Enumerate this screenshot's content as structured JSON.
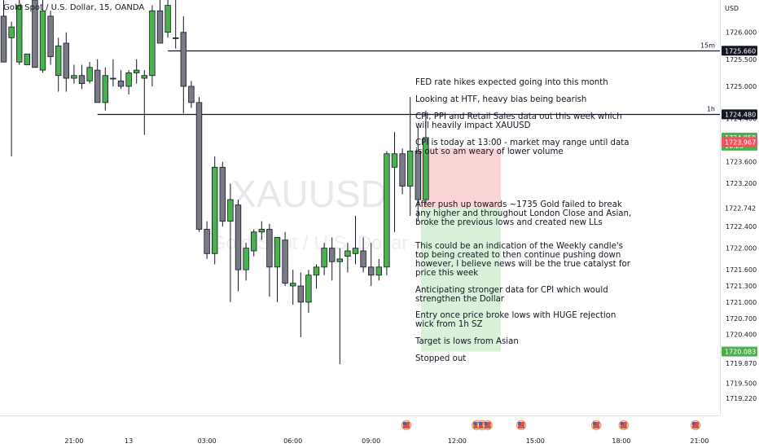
{
  "header": {
    "ticker_text": "Gold Spot / U.S. Dollar, 15, OANDA"
  },
  "watermark": {
    "symbol": "XAUUSD",
    "interval": "15",
    "description": "Gold Spot / U.S. Dollar"
  },
  "colors": {
    "bull": "#4caf50",
    "bear": "#787b86",
    "border": "#131722",
    "stop_zone": "#fad4d4",
    "target_zone": "#d9f1d9",
    "current_price_bg": "#4caf50",
    "bid_price_bg": "#f7525f",
    "target_price_bg": "#4caf50",
    "level_price_bg": "#131722"
  },
  "notes": [
    "FED rate hikes expected going into this month",
    "Looking at HTF, heavy bias being bearish",
    "CPI, PPI and Retail Sales data out this week which will heavily impact XAUUSD",
    "CPI is today at 13:00 - market may range until data is out so am weary of lower volume",
    "After push up towards ~1735 Gold failed to break any higher and throughout London Close and Asian, broke the previous lows and created new LLs",
    "This could be an indication of the Weekly candle's top being created to then continue pushing down however, I believe news will be the true catalyst for price this week",
    "Anticipating stronger data for CPI which would strengthen the Dollar",
    "Entry once price broke lows with HUGE rejection wick from 1h SZ",
    "Target is lows from Asian",
    "Stopped out"
  ],
  "chart_data": {
    "type": "candlestick",
    "title": "Gold Spot / U.S. Dollar, 15, OANDA",
    "y_axis": {
      "unit": "USD",
      "range": [
        1718.9,
        1726.6
      ],
      "ticks": [
        "1726.000",
        "1725.500",
        "1725.000",
        "1724.400",
        "1723.600",
        "1723.200",
        "1722.400",
        "1722.000",
        "1721.600",
        "1721.300",
        "1721.000",
        "1720.700",
        "1720.400",
        "1719.870",
        "1719.500",
        "1719.220"
      ],
      "tick_values": [
        1726.0,
        1725.5,
        1725.0,
        1724.4,
        1723.6,
        1723.2,
        1722.4,
        1722.0,
        1721.6,
        1721.3,
        1721.0,
        1720.7,
        1720.4,
        1719.87,
        1719.5,
        1719.22
      ]
    },
    "x_axis": {
      "ticks": [
        "21:00",
        "13",
        "03:00",
        "06:00",
        "09:00",
        "12:00",
        "15:00",
        "18:00",
        "21:00"
      ],
      "tick_positions": [
        9,
        16,
        26,
        37,
        47,
        58,
        68,
        79,
        89
      ]
    },
    "candles": [
      {
        "i": 0,
        "o": 1726.3,
        "h": 1726.6,
        "l": 1725.45,
        "c": 1725.45
      },
      {
        "i": 1,
        "o": 1725.9,
        "h": 1726.2,
        "l": 1723.7,
        "c": 1726.1
      },
      {
        "i": 2,
        "o": 1725.45,
        "h": 1726.6,
        "l": 1725.4,
        "c": 1726.5
      },
      {
        "i": 3,
        "o": 1725.4,
        "h": 1725.6,
        "l": 1725.4,
        "c": 1725.6
      },
      {
        "i": 4,
        "o": 1726.6,
        "h": 1726.6,
        "l": 1725.35,
        "c": 1725.35
      },
      {
        "i": 5,
        "o": 1725.3,
        "h": 1726.6,
        "l": 1725.25,
        "c": 1726.4
      },
      {
        "i": 6,
        "o": 1726.3,
        "h": 1726.4,
        "l": 1725.4,
        "c": 1725.55
      },
      {
        "i": 7,
        "o": 1725.2,
        "h": 1725.9,
        "l": 1724.9,
        "c": 1725.75
      },
      {
        "i": 8,
        "o": 1725.8,
        "h": 1726.0,
        "l": 1724.9,
        "c": 1725.15
      },
      {
        "i": 9,
        "o": 1725.15,
        "h": 1725.4,
        "l": 1725.05,
        "c": 1725.2
      },
      {
        "i": 10,
        "o": 1725.2,
        "h": 1725.4,
        "l": 1724.95,
        "c": 1725.05
      },
      {
        "i": 11,
        "o": 1725.1,
        "h": 1725.45,
        "l": 1725.05,
        "c": 1725.35
      },
      {
        "i": 12,
        "o": 1725.3,
        "h": 1725.5,
        "l": 1724.7,
        "c": 1724.7
      },
      {
        "i": 13,
        "o": 1724.7,
        "h": 1725.35,
        "l": 1724.55,
        "c": 1725.2
      },
      {
        "i": 14,
        "o": 1725.15,
        "h": 1725.5,
        "l": 1725.0,
        "c": 1725.15
      },
      {
        "i": 15,
        "o": 1725.1,
        "h": 1725.3,
        "l": 1724.95,
        "c": 1725.0
      },
      {
        "i": 16,
        "o": 1725.0,
        "h": 1725.3,
        "l": 1724.85,
        "c": 1725.25
      },
      {
        "i": 17,
        "o": 1725.25,
        "h": 1725.5,
        "l": 1725.05,
        "c": 1725.3
      },
      {
        "i": 18,
        "o": 1725.15,
        "h": 1725.3,
        "l": 1724.1,
        "c": 1725.2
      },
      {
        "i": 19,
        "o": 1725.2,
        "h": 1726.5,
        "l": 1725.0,
        "c": 1726.4
      },
      {
        "i": 20,
        "o": 1726.4,
        "h": 1726.6,
        "l": 1725.8,
        "c": 1725.8
      },
      {
        "i": 21,
        "o": 1726.0,
        "h": 1726.6,
        "l": 1725.9,
        "c": 1726.5
      },
      {
        "i": 22,
        "o": 1725.9,
        "h": 1726.6,
        "l": 1725.7,
        "c": 1725.9
      },
      {
        "i": 23,
        "o": 1726.0,
        "h": 1726.3,
        "l": 1724.5,
        "c": 1725.0
      },
      {
        "i": 24,
        "o": 1725.0,
        "h": 1725.1,
        "l": 1724.6,
        "c": 1724.7
      },
      {
        "i": 25,
        "o": 1724.7,
        "h": 1724.8,
        "l": 1722.3,
        "c": 1722.35
      },
      {
        "i": 26,
        "o": 1722.35,
        "h": 1722.5,
        "l": 1721.8,
        "c": 1721.9
      },
      {
        "i": 27,
        "o": 1721.9,
        "h": 1723.7,
        "l": 1721.7,
        "c": 1723.5
      },
      {
        "i": 28,
        "o": 1723.5,
        "h": 1723.6,
        "l": 1722.4,
        "c": 1722.5
      },
      {
        "i": 29,
        "o": 1722.5,
        "h": 1723.2,
        "l": 1721.0,
        "c": 1722.9
      },
      {
        "i": 30,
        "o": 1722.8,
        "h": 1722.9,
        "l": 1721.2,
        "c": 1721.6
      },
      {
        "i": 31,
        "o": 1721.6,
        "h": 1722.1,
        "l": 1721.4,
        "c": 1722.0
      },
      {
        "i": 32,
        "o": 1721.95,
        "h": 1722.35,
        "l": 1721.85,
        "c": 1722.3
      },
      {
        "i": 33,
        "o": 1722.3,
        "h": 1722.5,
        "l": 1722.15,
        "c": 1722.35
      },
      {
        "i": 34,
        "o": 1722.35,
        "h": 1722.45,
        "l": 1721.1,
        "c": 1721.65
      },
      {
        "i": 35,
        "o": 1721.65,
        "h": 1722.2,
        "l": 1721.0,
        "c": 1722.2
      },
      {
        "i": 36,
        "o": 1722.15,
        "h": 1722.3,
        "l": 1721.3,
        "c": 1721.35
      },
      {
        "i": 37,
        "o": 1721.3,
        "h": 1721.6,
        "l": 1720.95,
        "c": 1721.35
      },
      {
        "i": 38,
        "o": 1721.3,
        "h": 1721.55,
        "l": 1720.35,
        "c": 1721.0
      },
      {
        "i": 39,
        "o": 1721.0,
        "h": 1721.6,
        "l": 1720.8,
        "c": 1721.5
      },
      {
        "i": 40,
        "o": 1721.5,
        "h": 1721.7,
        "l": 1721.25,
        "c": 1721.65
      },
      {
        "i": 41,
        "o": 1721.65,
        "h": 1722.1,
        "l": 1721.5,
        "c": 1722.0
      },
      {
        "i": 42,
        "o": 1722.0,
        "h": 1722.2,
        "l": 1721.4,
        "c": 1721.75
      },
      {
        "i": 43,
        "o": 1721.75,
        "h": 1722.0,
        "l": 1719.85,
        "c": 1721.8
      },
      {
        "i": 44,
        "o": 1721.85,
        "h": 1722.1,
        "l": 1721.55,
        "c": 1721.95
      },
      {
        "i": 45,
        "o": 1721.9,
        "h": 1722.6,
        "l": 1721.7,
        "c": 1722.0
      },
      {
        "i": 46,
        "o": 1721.95,
        "h": 1722.2,
        "l": 1721.55,
        "c": 1721.65
      },
      {
        "i": 47,
        "o": 1721.65,
        "h": 1722.1,
        "l": 1721.3,
        "c": 1721.5
      },
      {
        "i": 48,
        "o": 1721.5,
        "h": 1721.8,
        "l": 1721.4,
        "c": 1721.65
      },
      {
        "i": 49,
        "o": 1721.65,
        "h": 1723.8,
        "l": 1721.5,
        "c": 1723.75
      },
      {
        "i": 50,
        "o": 1723.5,
        "h": 1724.15,
        "l": 1722.3,
        "c": 1723.75
      },
      {
        "i": 51,
        "o": 1723.75,
        "h": 1723.85,
        "l": 1723.0,
        "c": 1723.15
      },
      {
        "i": 52,
        "o": 1723.15,
        "h": 1724.8,
        "l": 1722.6,
        "c": 1723.8
      },
      {
        "i": 53,
        "o": 1723.8,
        "h": 1724.25,
        "l": 1722.5,
        "c": 1722.9
      },
      {
        "i": 54,
        "o": 1722.9,
        "h": 1724.55,
        "l": 1722.8,
        "c": 1724.05
      }
    ],
    "horizontal_levels": [
      {
        "label": "15m",
        "price": 1725.66,
        "price_label": "1725.660",
        "start_i": 21
      },
      {
        "label": "1h",
        "price": 1724.48,
        "price_label": "1724.480",
        "start_i": 12
      }
    ],
    "position": {
      "type": "short",
      "entry": 1722.742,
      "entry_label": "1722.742",
      "stop": 1723.85,
      "target": 1720.083,
      "target_label": "1720.083",
      "start_i": 54
    },
    "current_price": {
      "value": 1724.05,
      "label": "1724.050",
      "countdown": "10:23"
    },
    "bid_price": {
      "value": 1723.967,
      "label": "1723.967"
    },
    "event_markers_at": [
      51.5,
      60.5,
      61.2,
      61.9,
      66.2,
      75.8,
      79.3,
      88.5
    ]
  }
}
